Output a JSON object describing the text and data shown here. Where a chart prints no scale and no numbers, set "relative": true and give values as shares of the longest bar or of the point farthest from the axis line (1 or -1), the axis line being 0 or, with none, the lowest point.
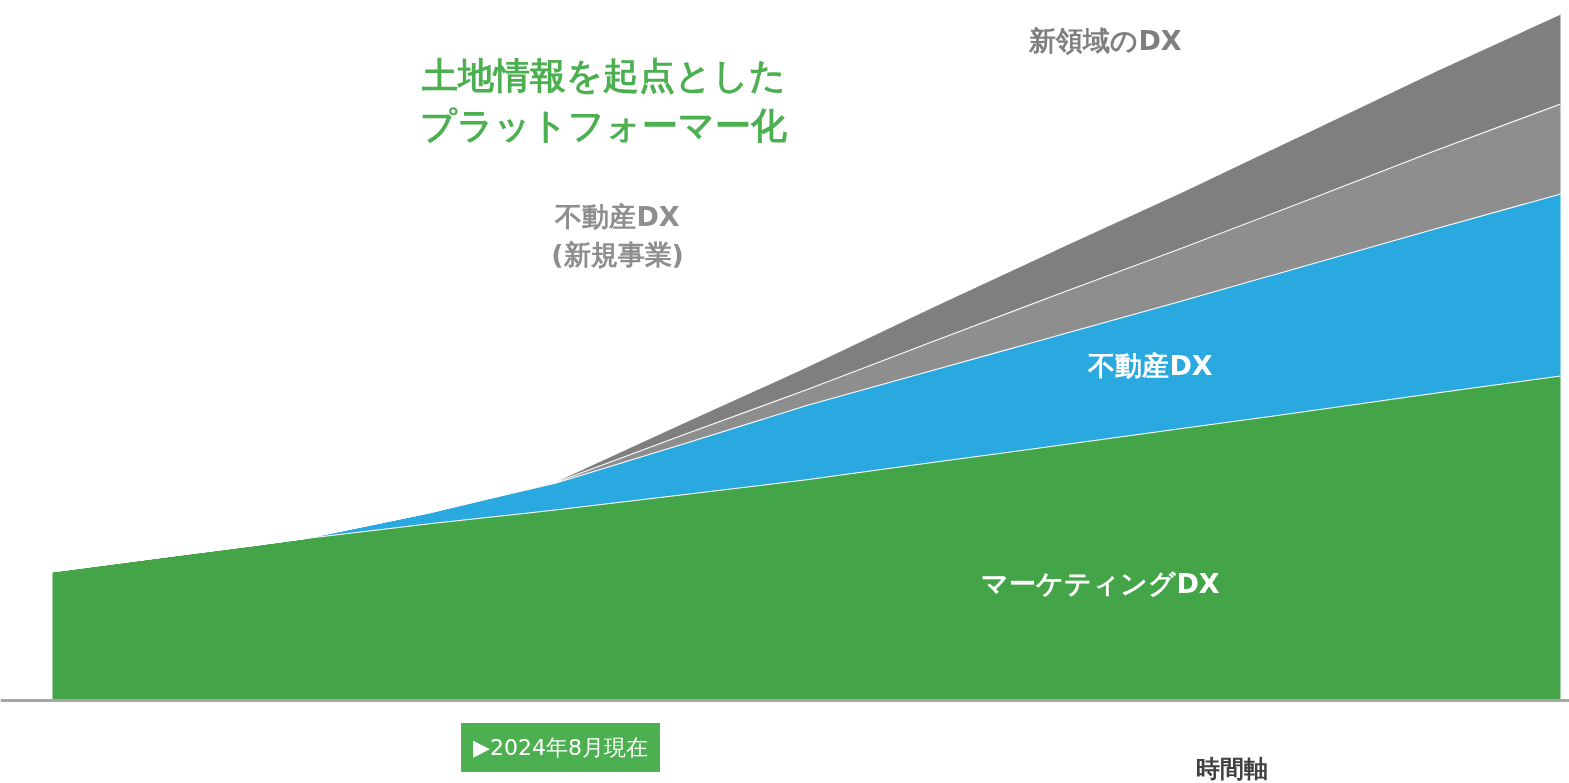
{
  "chart_data": {
    "type": "area",
    "relative": true,
    "stacked": true,
    "title": "土地情報を起点としたプラットフォーマー化",
    "xlabel": "時間軸",
    "annotations": [
      "▶2024年8月現在"
    ],
    "categories": [
      null,
      null,
      null,
      null,
      null,
      null,
      null,
      null,
      null,
      null,
      null,
      null,
      null
    ],
    "series": [
      {
        "name": "マーケティングDX",
        "color": "#43a548",
        "values": [
          0.188,
          0.212,
          0.236,
          0.258,
          0.278,
          0.3,
          0.322,
          0.347,
          0.372,
          0.397,
          0.422,
          0.448,
          0.473
        ]
      },
      {
        "name": "不動産DX",
        "color": "#29a9e0",
        "values": [
          0,
          0,
          0,
          0.016,
          0.039,
          0.073,
          0.108,
          0.134,
          0.16,
          0.186,
          0.213,
          0.239,
          0.265
        ]
      },
      {
        "name": "不動産DX\n(新規事業)",
        "color": "#8e8e8e",
        "values": [
          0,
          0,
          0,
          0,
          0.001,
          0.013,
          0.023,
          0.042,
          0.06,
          0.077,
          0.095,
          0.114,
          0.131
        ]
      },
      {
        "name": "新領域のDX",
        "color": "#7f7f7f",
        "values": [
          0,
          0,
          0,
          0,
          0.001,
          0.017,
          0.033,
          0.05,
          0.066,
          0.082,
          0.099,
          0.115,
          0.131
        ]
      }
    ],
    "grid": false
  }
}
